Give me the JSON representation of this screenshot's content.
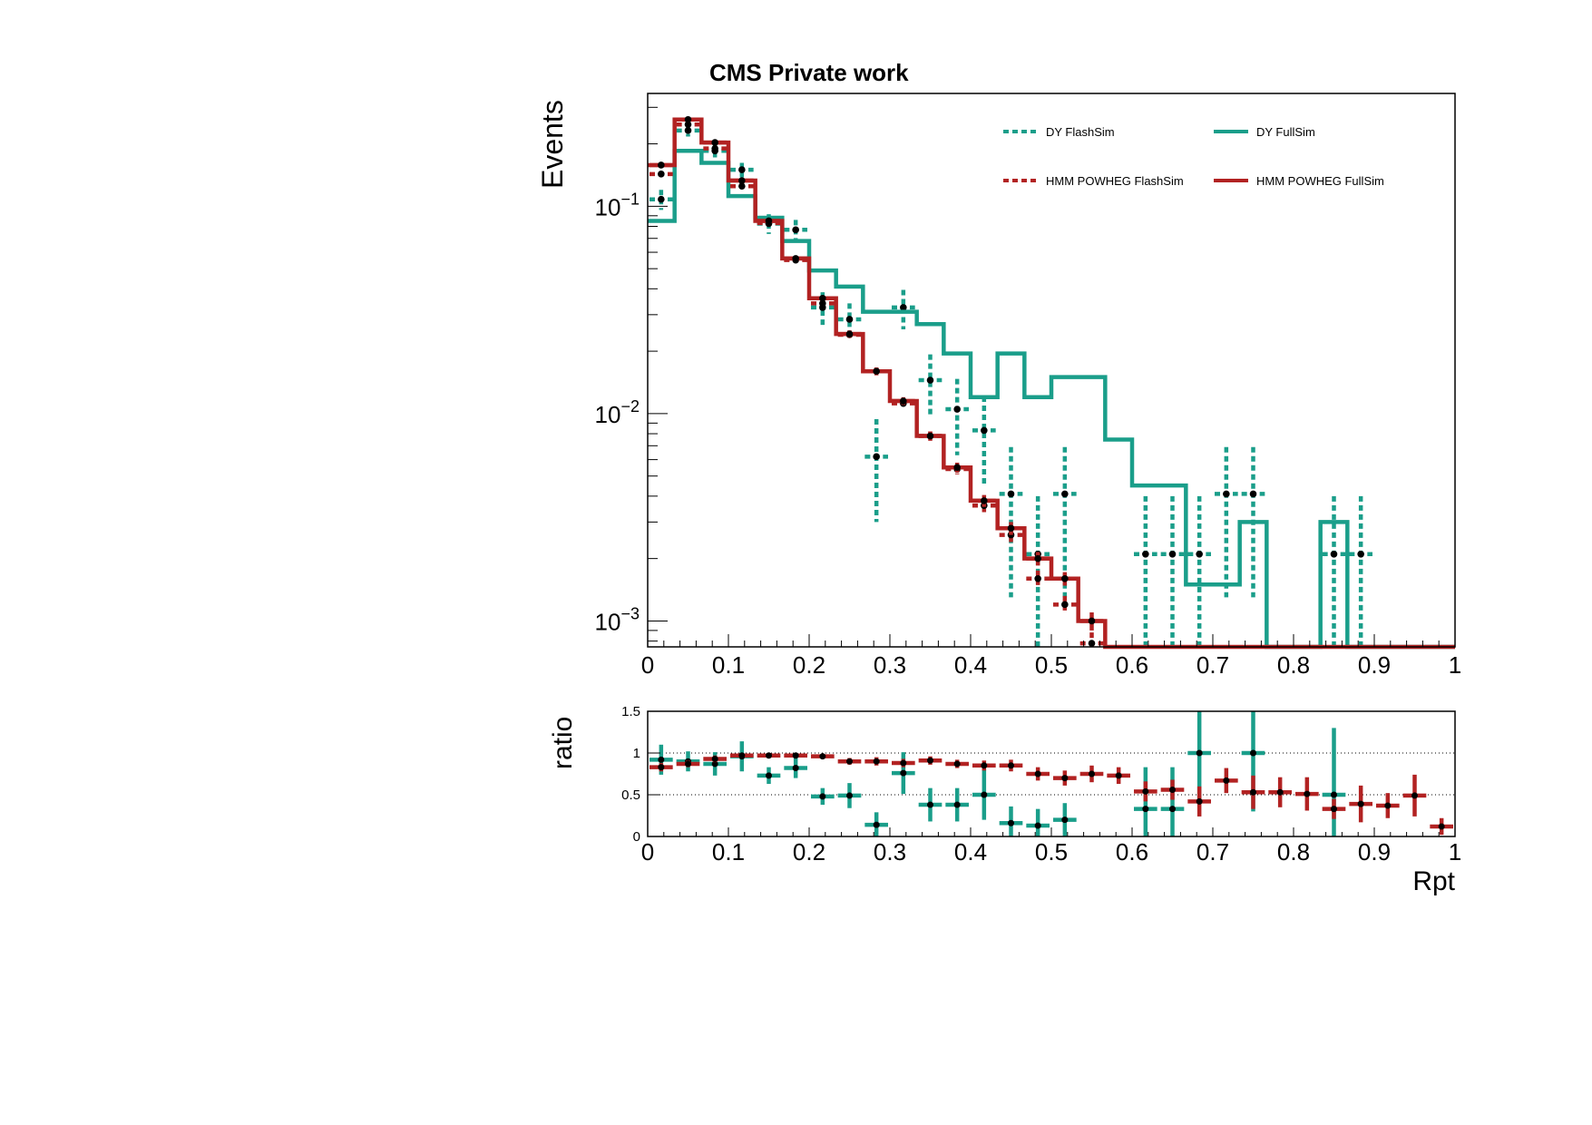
{
  "chart_data": {
    "type": "line",
    "title": "CMS Private work",
    "xlabel": "Rpt",
    "colors": {
      "dy": "#1a9e8a",
      "hmm": "#b22222",
      "axis": "#000000"
    },
    "main": {
      "ylabel": "Events",
      "yscale": "log",
      "ylim": [
        0.00075,
        0.35
      ],
      "xlim": [
        0,
        1
      ],
      "x_ticks": [
        "0",
        "0.1",
        "0.2",
        "0.3",
        "0.4",
        "0.5",
        "0.6",
        "0.7",
        "0.8",
        "0.9",
        "1"
      ],
      "y_ticks": [
        {
          "base": "10",
          "exp": "−1",
          "value": 0.1
        },
        {
          "base": "10",
          "exp": "−2",
          "value": 0.01
        },
        {
          "base": "10",
          "exp": "−3",
          "value": 0.001
        }
      ]
    },
    "ratio": {
      "ylabel": "ratio",
      "ylim": [
        0,
        1.5
      ],
      "y_ticks": [
        "0",
        "0.5",
        "1",
        "1.5"
      ],
      "dy": [
        0.92,
        0.9,
        0.87,
        0.96,
        0.73,
        0.82,
        0.48,
        0.49,
        0.14,
        0.76,
        0.38,
        0.38,
        0.5,
        0.16,
        0.13,
        0.2,
        null,
        null,
        0.33,
        0.33,
        1.0,
        null,
        1.0,
        null,
        null,
        0.5,
        null,
        null,
        null,
        null
      ],
      "dy_err": [
        0.18,
        0.12,
        0.14,
        0.18,
        0.1,
        0.12,
        0.1,
        0.15,
        0.15,
        0.25,
        0.2,
        0.2,
        0.3,
        0.2,
        0.2,
        0.2,
        0,
        0,
        0.5,
        0.5,
        0.6,
        0,
        0.7,
        0,
        0,
        0.8,
        0,
        0,
        0,
        0
      ],
      "hmm": [
        0.83,
        0.87,
        0.93,
        0.97,
        0.97,
        0.97,
        0.96,
        0.9,
        0.9,
        0.88,
        0.91,
        0.87,
        0.85,
        0.85,
        0.75,
        0.7,
        0.75,
        0.73,
        0.54,
        0.56,
        0.42,
        0.67,
        0.53,
        0.53,
        0.51,
        0.33,
        0.39,
        0.37,
        0.49,
        0.12
      ],
      "hmm_err": [
        0.05,
        0.04,
        0.04,
        0.03,
        0.03,
        0.03,
        0.03,
        0.04,
        0.05,
        0.05,
        0.05,
        0.05,
        0.06,
        0.07,
        0.08,
        0.09,
        0.1,
        0.1,
        0.12,
        0.12,
        0.18,
        0.15,
        0.2,
        0.18,
        0.2,
        0.12,
        0.22,
        0.15,
        0.25,
        0.1
      ]
    },
    "bin_width": 0.0333,
    "series": [
      {
        "name": "DY FlashSim",
        "style": "dashed",
        "color": "#1a9e8a",
        "values": [
          0.108,
          0.232,
          0.185,
          0.15,
          0.0825,
          0.077,
          0.0325,
          0.0285,
          0.0062,
          0.0325,
          0.0145,
          0.0105,
          0.0083,
          0.0041,
          0.0021,
          0.0041,
          null,
          null,
          0.0021,
          0.0021,
          0.0021,
          0.0041,
          0.0041,
          null,
          null,
          0.0021,
          0.0021,
          null,
          null,
          null
        ],
        "errors": [
          0.012,
          0.015,
          0.013,
          0.012,
          0.009,
          0.009,
          0.006,
          0.0055,
          0.0032,
          0.007,
          0.0048,
          0.0042,
          0.0038,
          0.0028,
          0.0019,
          0.0028,
          0,
          0,
          0.0019,
          0.0019,
          0.0019,
          0.0028,
          0.0028,
          0,
          0,
          0.0019,
          0.0019,
          0,
          0,
          0
        ]
      },
      {
        "name": "DY FullSim",
        "style": "solid",
        "color": "#1a9e8a",
        "values": [
          0.085,
          0.185,
          0.162,
          0.112,
          0.088,
          0.068,
          0.049,
          0.041,
          0.031,
          0.031,
          0.027,
          0.0195,
          0.012,
          0.0195,
          0.012,
          0.015,
          0.015,
          0.0075,
          0.0045,
          0.0045,
          0.0015,
          0.0015,
          0.003,
          0.0007,
          0.0007,
          0.003,
          0.0007,
          0.0007,
          0.0007,
          0.0007
        ]
      },
      {
        "name": "HMM POWHEG FlashSim",
        "style": "dashed",
        "color": "#b22222",
        "values": [
          0.143,
          0.248,
          0.19,
          0.125,
          0.083,
          0.055,
          0.034,
          0.024,
          0.016,
          0.0112,
          0.0078,
          0.0054,
          0.0036,
          0.0026,
          0.0016,
          0.0012,
          0.00078,
          null,
          null,
          null,
          null,
          null,
          null,
          null,
          null,
          null,
          null,
          null,
          null,
          null
        ],
        "errors": [
          0.004,
          0.005,
          0.004,
          0.003,
          0.002,
          0.0016,
          0.0012,
          0.001,
          0.0007,
          0.0005,
          0.0004,
          0.0003,
          0.00025,
          0.0002,
          0.00015,
          0.00012,
          0.0001,
          0,
          0,
          0,
          0,
          0,
          0,
          0,
          0,
          0,
          0,
          0,
          0,
          0
        ]
      },
      {
        "name": "HMM POWHEG FullSim",
        "style": "solid",
        "color": "#b22222",
        "values": [
          0.158,
          0.262,
          0.203,
          0.133,
          0.085,
          0.056,
          0.036,
          0.0242,
          0.016,
          0.0115,
          0.0078,
          0.0055,
          0.0038,
          0.0028,
          0.002,
          0.0016,
          0.001,
          null,
          null,
          null,
          null,
          null,
          null,
          null,
          null,
          null,
          null,
          null,
          null,
          null
        ],
        "errors": [
          0.004,
          0.005,
          0.004,
          0.003,
          0.002,
          0.0016,
          0.0012,
          0.001,
          0.0007,
          0.0005,
          0.0004,
          0.0003,
          0.00025,
          0.0002,
          0.00015,
          0.00012,
          0.0001,
          0,
          0,
          0,
          0,
          0,
          0,
          0,
          0,
          0,
          0,
          0,
          0,
          0
        ]
      }
    ],
    "legend": [
      {
        "label": "DY FlashSim",
        "style": "dashed",
        "color": "#1a9e8a"
      },
      {
        "label": "DY FullSim",
        "style": "solid",
        "color": "#1a9e8a"
      },
      {
        "label": "HMM POWHEG FlashSim",
        "style": "dashed",
        "color": "#b22222"
      },
      {
        "label": "HMM POWHEG FullSim",
        "style": "solid",
        "color": "#b22222"
      }
    ]
  }
}
